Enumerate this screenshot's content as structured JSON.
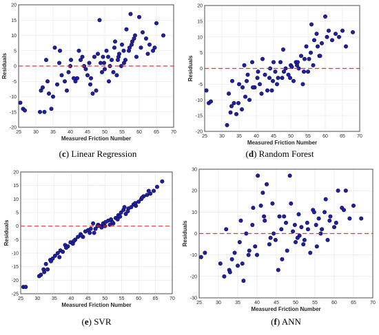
{
  "chart_data": [
    {
      "type": "scatter",
      "caption_letter": "c",
      "caption_text": "Linear Regression",
      "xlabel": "Measured Friction Number",
      "ylabel": "Residuals",
      "xlim": [
        25,
        70
      ],
      "ylim": [
        -20,
        20
      ],
      "xticks": [
        25,
        30,
        35,
        40,
        45,
        50,
        55,
        60,
        65,
        70
      ],
      "yticks": [
        -20,
        -15,
        -10,
        -5,
        0,
        5,
        10,
        15,
        20
      ],
      "reference_line_y": 0,
      "x": [
        25.5,
        26.3,
        26.8,
        31.2,
        32.0,
        32.5,
        33.0,
        33.4,
        34.5,
        35.5,
        36.2,
        36.8,
        37.5,
        38.4,
        39.0,
        40.2,
        41.0,
        42.5,
        44.0,
        45.0,
        45.8,
        47.0,
        48.5,
        49.2,
        49.8,
        50.5,
        51.2,
        52.0,
        52.8,
        53.5,
        54.2,
        55.0,
        55.6,
        56.3,
        57.0,
        57.5,
        58.0,
        58.5,
        59.2,
        60.0,
        61.0,
        62.0,
        63.0,
        64.0,
        65.0,
        67.0,
        31.5,
        33.8,
        35.0,
        37.0,
        39.5,
        41.5,
        43.0,
        44.5,
        46.0,
        47.5,
        48.0,
        50.0,
        51.0,
        52.5,
        53.0,
        54.8,
        56.0,
        57.2,
        58.8,
        60.5,
        62.5,
        64.5,
        40.0,
        43.5,
        46.5,
        48.8,
        51.5,
        54.0,
        55.5,
        42.0,
        45.5,
        49.5,
        53.8,
        57.8
      ],
      "y": [
        -12.0,
        -14.0,
        -14.5,
        -15.0,
        -7.0,
        -15.0,
        2.0,
        -5.0,
        -14.0,
        6.0,
        -6.0,
        1.0,
        -3.0,
        -5.0,
        -8.0,
        2.0,
        -4.0,
        5.0,
        0.0,
        -3.0,
        -6.0,
        3.0,
        15.0,
        -2.0,
        1.0,
        5.0,
        -5.0,
        2.0,
        6.0,
        -3.0,
        4.0,
        7.0,
        1.0,
        12.0,
        5.0,
        17.0,
        8.0,
        9.0,
        3.0,
        16.0,
        11.0,
        9.0,
        7.0,
        5.0,
        14.0,
        10.0,
        -8.0,
        -9.0,
        -10.0,
        5.0,
        -2.0,
        -5.0,
        2.0,
        -1.0,
        -4.0,
        -8.0,
        4.0,
        -1.0,
        3.0,
        -2.0,
        8.0,
        0.0,
        2.0,
        6.0,
        10.0,
        6.0,
        4.0,
        6.0,
        0.0,
        3.0,
        -9.0,
        1.0,
        0.0,
        3.0,
        5.0,
        -4.0,
        1.0,
        3.0,
        2.0,
        7.0
      ]
    },
    {
      "type": "scatter",
      "caption_letter": "d",
      "caption_text": "Random Forest",
      "xlabel": "Measured Friction Number",
      "ylabel": "Residuals",
      "xlim": [
        25,
        70
      ],
      "ylim": [
        -20,
        20
      ],
      "xticks": [
        25,
        30,
        35,
        40,
        45,
        50,
        55,
        60,
        65,
        70
      ],
      "yticks": [
        -20,
        -15,
        -10,
        -5,
        0,
        5,
        10,
        15,
        20
      ],
      "reference_line_y": 0,
      "x": [
        25.5,
        26.2,
        26.8,
        31.5,
        32.0,
        32.8,
        33.5,
        34.2,
        35.0,
        35.8,
        36.5,
        37.2,
        38.0,
        38.8,
        39.5,
        40.3,
        41.0,
        41.8,
        42.5,
        43.2,
        44.0,
        44.8,
        45.5,
        46.3,
        47.0,
        47.8,
        48.5,
        49.3,
        50.0,
        50.8,
        51.5,
        52.3,
        53.0,
        53.8,
        54.5,
        55.3,
        56.0,
        56.8,
        57.5,
        58.3,
        59.0,
        60.0,
        61.0,
        62.0,
        63.0,
        64.0,
        65.0,
        66.0,
        68.0,
        32.5,
        34.8,
        36.8,
        39.0,
        41.5,
        43.8,
        46.0,
        48.0,
        50.3,
        52.0,
        54.0,
        55.8,
        57.8,
        60.5,
        37.5,
        44.5,
        49.8,
        53.5,
        56.5,
        40.5,
        47.5,
        51.8,
        55.0,
        58.5,
        45.0,
        33.0,
        36.0
      ],
      "y": [
        -7.0,
        -11.0,
        -10.5,
        -18.0,
        -8.0,
        -12.0,
        -11.0,
        -14.5,
        -5.0,
        -13.0,
        1.0,
        -4.0,
        -10.0,
        2.0,
        -6.0,
        -3.0,
        -5.0,
        3.0,
        -2.0,
        -7.0,
        0.0,
        -4.0,
        -1.0,
        -3.0,
        2.0,
        6.0,
        0.0,
        -2.0,
        1.0,
        -4.0,
        2.0,
        0.0,
        4.0,
        -1.0,
        7.0,
        3.0,
        14.0,
        9.0,
        11.0,
        4.0,
        8.0,
        16.5,
        12.0,
        9.0,
        11.0,
        10.0,
        12.0,
        7.0,
        11.5,
        -14.0,
        -11.0,
        -9.0,
        -6.0,
        -8.0,
        -3.0,
        -5.0,
        -1.0,
        0.5,
        2.0,
        3.0,
        5.0,
        7.0,
        10.0,
        -2.0,
        -7.0,
        -3.0,
        -5.0,
        1.0,
        -1.0,
        -3.0,
        1.0,
        -1.0,
        4.0,
        2.0,
        -4.0,
        -6.0
      ]
    },
    {
      "type": "scatter",
      "caption_letter": "e",
      "caption_text": "SVR",
      "xlabel": "Measured Friction Number",
      "ylabel": "Residuals",
      "xlim": [
        25,
        70
      ],
      "ylim": [
        -25,
        20
      ],
      "xticks": [
        25,
        30,
        35,
        40,
        45,
        50,
        55,
        60,
        65,
        70
      ],
      "yticks": [
        -25,
        -20,
        -15,
        -10,
        -5,
        0,
        5,
        10,
        15,
        20
      ],
      "reference_line_y": 0,
      "x": [
        25.8,
        26.5,
        30.5,
        31.0,
        31.8,
        32.5,
        33.0,
        33.8,
        34.5,
        35.2,
        36.0,
        36.8,
        37.5,
        38.2,
        39.0,
        39.8,
        40.5,
        41.2,
        42.0,
        42.8,
        43.5,
        44.2,
        45.0,
        45.8,
        46.5,
        47.2,
        48.0,
        48.8,
        49.5,
        50.2,
        51.0,
        51.8,
        52.5,
        53.2,
        54.0,
        54.8,
        55.5,
        56.2,
        57.0,
        57.8,
        58.5,
        59.2,
        60.0,
        60.8,
        61.5,
        62.5,
        63.5,
        64.5,
        65.5,
        67.0,
        32.0,
        34.0,
        36.5,
        38.5,
        40.8,
        43.0,
        45.5,
        47.8,
        50.0,
        52.2,
        54.5,
        56.8,
        59.0,
        61.0,
        63.0,
        49.0,
        53.8,
        46.8,
        51.5,
        55.8
      ],
      "y": [
        -22.5,
        -22.5,
        -18.5,
        -18.0,
        -16.0,
        -14.0,
        -16.0,
        -12.5,
        -12.0,
        -11.0,
        -10.0,
        -9.0,
        -9.5,
        -7.0,
        -7.5,
        -6.0,
        -6.5,
        -5.0,
        -4.0,
        -3.0,
        -4.0,
        -2.0,
        -1.5,
        -1.0,
        1.0,
        -1.0,
        0.5,
        0.0,
        1.0,
        1.5,
        2.0,
        2.5,
        1.0,
        3.0,
        4.0,
        5.0,
        6.0,
        4.5,
        6.5,
        7.0,
        8.0,
        7.5,
        9.0,
        10.0,
        11.0,
        11.5,
        12.0,
        13.0,
        14.5,
        16.5,
        -17.0,
        -13.0,
        -11.5,
        -8.0,
        -5.5,
        -3.5,
        -2.5,
        0.0,
        0.0,
        1.5,
        3.5,
        5.5,
        8.5,
        10.5,
        13.0,
        -0.5,
        2.5,
        -2.5,
        0.5,
        7.0
      ]
    },
    {
      "type": "scatter",
      "caption_letter": "f",
      "caption_text": "ANN",
      "xlabel": "Measured Friction Number",
      "ylabel": "Residuals",
      "xlim": [
        25,
        70
      ],
      "ylim": [
        -30,
        30
      ],
      "xticks": [
        25,
        30,
        35,
        40,
        45,
        50,
        55,
        60,
        65,
        70
      ],
      "yticks": [
        -30,
        -20,
        -10,
        0,
        10,
        20,
        30
      ],
      "reference_line_y": 0,
      "x": [
        25.5,
        26.5,
        30.5,
        31.5,
        32.0,
        32.8,
        33.5,
        34.2,
        35.0,
        35.8,
        36.5,
        37.2,
        38.0,
        38.8,
        39.5,
        40.2,
        41.0,
        41.8,
        42.5,
        43.2,
        44.0,
        44.8,
        45.5,
        46.3,
        47.0,
        47.8,
        48.5,
        49.3,
        50.0,
        50.8,
        51.5,
        52.3,
        53.0,
        53.8,
        54.5,
        55.3,
        56.0,
        56.8,
        57.5,
        58.3,
        59.0,
        60.0,
        61.0,
        62.0,
        63.0,
        64.0,
        65.0,
        67.0,
        33.0,
        35.5,
        37.8,
        40.0,
        42.0,
        44.3,
        46.5,
        48.8,
        51.0,
        53.2,
        55.5,
        57.8,
        60.5,
        62.5,
        39.0,
        43.5,
        47.5,
        52.0,
        56.5,
        41.5,
        45.8,
        50.5,
        54.8,
        58.8,
        36.2,
        49.8
      ],
      "y": [
        -11.0,
        -9.0,
        -14.0,
        -20.0,
        2.0,
        -17.0,
        -12.0,
        -9.0,
        -15.0,
        6.0,
        -22.0,
        0.0,
        -8.0,
        4.0,
        -6.0,
        27.0,
        13.0,
        8.0,
        23.0,
        -5.0,
        14.0,
        -3.0,
        -17.0,
        2.0,
        8.0,
        -8.0,
        27.0,
        1.0,
        -4.0,
        9.0,
        3.0,
        -3.0,
        5.0,
        -9.0,
        11.0,
        4.0,
        7.0,
        2.0,
        10.0,
        -3.0,
        8.0,
        3.0,
        20.0,
        12.0,
        20.0,
        7.0,
        13.0,
        7.0,
        -18.0,
        -4.0,
        -10.0,
        -10.0,
        6.0,
        0.0,
        -12.0,
        14.0,
        -1.0,
        2.0,
        -6.0,
        16.0,
        5.0,
        11.0,
        12.0,
        -2.0,
        5.0,
        -5.0,
        0.0,
        19.0,
        8.0,
        -2.0,
        10.0,
        6.0,
        -14.0,
        4.0
      ]
    }
  ]
}
